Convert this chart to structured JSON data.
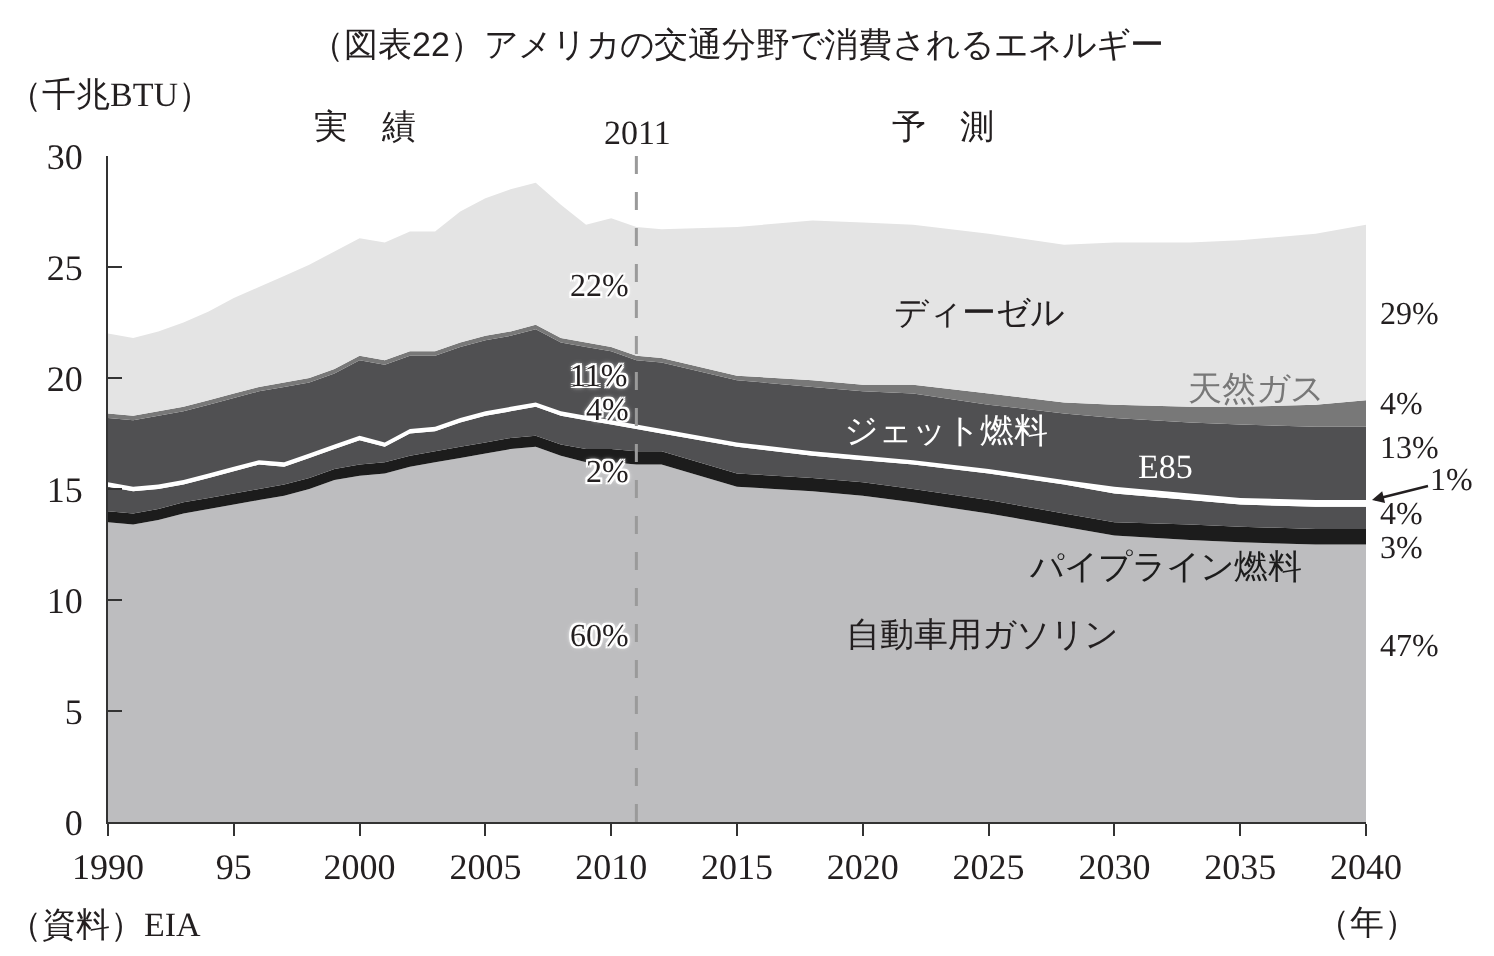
{
  "chart_data": {
    "type": "area",
    "stacked": true,
    "title": "（図表22）アメリカの交通分野で消費されるエネルギー",
    "ylabel": "（千兆BTU）",
    "xlabel": "（年）",
    "annotations": [
      "実　績",
      "予　測",
      "（資料）EIA",
      "22%",
      "11%",
      "4%",
      "2%",
      "60%",
      "29%",
      "4%",
      "13%",
      "1%",
      "4%",
      "3%",
      "47%"
    ],
    "x": [
      1990,
      1991,
      1992,
      1993,
      1994,
      1995,
      1996,
      1997,
      1998,
      1999,
      2000,
      2001,
      2002,
      2003,
      2004,
      2005,
      2006,
      2007,
      2008,
      2009,
      2010,
      2011,
      2012,
      2015,
      2018,
      2020,
      2022,
      2025,
      2028,
      2030,
      2033,
      2035,
      2038,
      2040
    ],
    "series": [
      {
        "name": "自動車用ガソリン",
        "color": "#bdbdbf",
        "values": [
          13.5,
          13.4,
          13.6,
          13.9,
          14.1,
          14.3,
          14.5,
          14.7,
          15.0,
          15.4,
          15.6,
          15.7,
          16.0,
          16.2,
          16.4,
          16.6,
          16.8,
          16.9,
          16.5,
          16.2,
          16.2,
          16.1,
          16.1,
          15.1,
          14.9,
          14.7,
          14.4,
          13.9,
          13.3,
          12.9,
          12.7,
          12.6,
          12.5,
          12.5
        ]
      },
      {
        "name": "パイプライン燃料",
        "color": "#1c1c1c",
        "values": [
          0.5,
          0.5,
          0.5,
          0.5,
          0.5,
          0.5,
          0.5,
          0.5,
          0.5,
          0.5,
          0.5,
          0.5,
          0.5,
          0.5,
          0.5,
          0.5,
          0.5,
          0.5,
          0.5,
          0.6,
          0.6,
          0.6,
          0.6,
          0.6,
          0.6,
          0.6,
          0.6,
          0.6,
          0.6,
          0.6,
          0.7,
          0.7,
          0.7,
          0.7
        ]
      },
      {
        "color": "#505052",
        "values": [
          1.1,
          1.0,
          0.9,
          0.8,
          0.9,
          1.0,
          1.1,
          0.8,
          0.9,
          0.9,
          1.1,
          0.7,
          1.0,
          0.9,
          1.1,
          1.2,
          1.2,
          1.3,
          1.3,
          1.3,
          1.1,
          1.0,
          0.8,
          1.2,
          1.0,
          1.0,
          1.1,
          1.2,
          1.3,
          1.3,
          1.1,
          1.0,
          1.0,
          1.0
        ]
      },
      {
        "name": "E85",
        "color": "#ffffff",
        "values": [
          0.2,
          0.2,
          0.2,
          0.2,
          0.2,
          0.2,
          0.2,
          0.2,
          0.2,
          0.2,
          0.2,
          0.2,
          0.2,
          0.2,
          0.2,
          0.2,
          0.2,
          0.2,
          0.2,
          0.2,
          0.2,
          0.2,
          0.2,
          0.2,
          0.2,
          0.2,
          0.2,
          0.2,
          0.2,
          0.3,
          0.3,
          0.3,
          0.3,
          0.3
        ]
      },
      {
        "name": "ジェット燃料",
        "color": "#505052",
        "values": [
          2.9,
          3.0,
          3.1,
          3.1,
          3.1,
          3.1,
          3.1,
          3.4,
          3.2,
          3.2,
          3.4,
          3.5,
          3.3,
          3.2,
          3.2,
          3.2,
          3.2,
          3.3,
          3.1,
          3.1,
          3.1,
          2.9,
          3.0,
          2.8,
          2.9,
          2.9,
          3.0,
          2.9,
          3.0,
          3.1,
          3.2,
          3.3,
          3.3,
          3.3
        ]
      },
      {
        "name": "天然ガス",
        "color": "#787878",
        "values": [
          0.2,
          0.2,
          0.2,
          0.2,
          0.2,
          0.2,
          0.2,
          0.2,
          0.2,
          0.2,
          0.2,
          0.2,
          0.2,
          0.2,
          0.2,
          0.2,
          0.2,
          0.2,
          0.2,
          0.2,
          0.2,
          0.2,
          0.2,
          0.2,
          0.3,
          0.3,
          0.4,
          0.5,
          0.5,
          0.6,
          0.7,
          0.8,
          1.0,
          1.2
        ]
      },
      {
        "name": "ディーゼル",
        "color": "#e4e4e4",
        "values": [
          3.6,
          3.5,
          3.6,
          3.8,
          4.0,
          4.3,
          4.5,
          4.8,
          5.1,
          5.3,
          5.3,
          5.3,
          5.4,
          5.4,
          5.9,
          6.2,
          6.4,
          6.4,
          6.0,
          5.3,
          5.8,
          5.8,
          5.8,
          6.7,
          7.2,
          7.3,
          7.2,
          7.2,
          7.1,
          7.3,
          7.4,
          7.5,
          7.7,
          7.9
        ]
      }
    ],
    "xlim": [
      1990,
      2040
    ],
    "xticks": [
      1990,
      {
        "value": 1995,
        "label": "95"
      },
      2000,
      2005,
      2010,
      2015,
      2020,
      2025,
      2030,
      2035,
      2040
    ],
    "ylim": [
      0,
      30
    ],
    "yticks": [
      0,
      5,
      10,
      15,
      20,
      25,
      30
    ],
    "ref_lines": [
      {
        "axis": "x",
        "value": 2011,
        "label": "2011",
        "color": "#9a9a9a",
        "line_style": "dashed"
      }
    ],
    "grid": false,
    "legend": false
  }
}
